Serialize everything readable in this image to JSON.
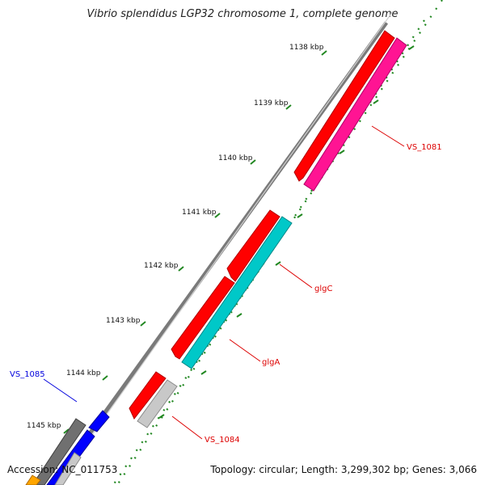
{
  "title": "Vibrio splendidus LGP32 chromosome 1, complete genome",
  "footer": {
    "accession": "Accession: NC_011753",
    "summary": "Topology: circular; Length: 3,299,302 bp; Genes: 3,066"
  },
  "ruler": {
    "ticks": [
      "1138 kbp",
      "1139 kbp",
      "1140 kbp",
      "1141 kbp",
      "1142 kbp",
      "1143 kbp",
      "1144 kbp",
      "1145 kbp"
    ]
  },
  "gene_labels": [
    {
      "name": "VS_1081",
      "color": "#dd0000"
    },
    {
      "name": "glgC",
      "color": "#dd0000"
    },
    {
      "name": "glgA",
      "color": "#dd0000"
    },
    {
      "name": "VS_1084",
      "color": "#dd0000"
    },
    {
      "name": "VS_1085",
      "color": "#0000dd"
    }
  ],
  "colors": {
    "cds_red": "#ff0000",
    "cds_pink": "#ff1493",
    "cds_cyan": "#00c8c8",
    "cds_grey": "#c8c8c8",
    "cds_darkgrey": "#707070",
    "cds_blue": "#0000ff",
    "cds_orange": "#ffa500",
    "backbone": "#808080",
    "ruler_green": "#228822"
  }
}
